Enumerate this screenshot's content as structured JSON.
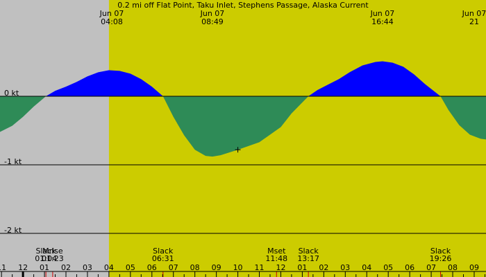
{
  "chart_data": {
    "type": "area",
    "title": "0.2 mi off Flat Point, Taku Inlet, Stephens Passage, Alaska Current",
    "x_unit": "hours after midnight Jun 07 (axis spans previous evening to next morning)",
    "xlim": [
      -1.07,
      21.55
    ],
    "ylim": [
      -2.08,
      1.0
    ],
    "y_ticks": [
      {
        "value": 0,
        "label": "0 kt"
      },
      {
        "value": -1,
        "label": "-1 kt"
      },
      {
        "value": -2,
        "label": "-2 kt"
      }
    ],
    "night_until_hour": 4.0,
    "top_labels": [
      {
        "hour": 4.133,
        "date": "Jun 07",
        "time": "04:08"
      },
      {
        "hour": 8.817,
        "date": "Jun 07",
        "time": "08:49"
      },
      {
        "hour": 16.733,
        "date": "Jun 07",
        "time": "16:44"
      },
      {
        "hour": 21.0,
        "date": "Jun 07",
        "time": "21"
      }
    ],
    "event_labels": [
      {
        "hour": 1.067,
        "name": "Slack",
        "time": "01:04"
      },
      {
        "hour": 1.383,
        "name": "Mrise",
        "time": "01:23"
      },
      {
        "hour": 6.517,
        "name": "Slack",
        "time": "06:31"
      },
      {
        "hour": 11.8,
        "name": "Mset",
        "time": "11:48"
      },
      {
        "hour": 13.283,
        "name": "Slack",
        "time": "13:17"
      },
      {
        "hour": 19.433,
        "name": "Slack",
        "time": "19:26"
      }
    ],
    "hour_ticks": [
      "11",
      "12",
      "01",
      "02",
      "03",
      "04",
      "05",
      "06",
      "07",
      "08",
      "09",
      "10",
      "11",
      "12",
      "01",
      "02",
      "03",
      "04",
      "05",
      "06",
      "07",
      "08",
      "09"
    ],
    "marker": {
      "hour": 10.0,
      "value": -0.78
    },
    "series": [
      {
        "x": [
          -1.07,
          -0.5,
          0,
          0.5,
          1.067,
          1.5,
          2,
          2.5,
          3,
          3.5,
          4,
          4.5,
          5,
          5.5,
          6,
          6.517,
          7,
          7.5,
          8,
          8.5,
          8.817,
          9.2,
          10,
          11,
          12,
          12.5,
          13.283,
          13.7,
          14.2,
          14.7,
          15.2,
          15.8,
          16.4,
          16.733,
          17.2,
          17.7,
          18.2,
          18.7,
          19.433,
          19.8,
          20.3,
          20.8,
          21.3,
          21.55
        ],
        "y": [
          -0.52,
          -0.43,
          -0.3,
          -0.15,
          0,
          0.08,
          0.14,
          0.21,
          0.29,
          0.35,
          0.38,
          0.37,
          0.33,
          0.25,
          0.14,
          0,
          -0.3,
          -0.57,
          -0.78,
          -0.87,
          -0.88,
          -0.86,
          -0.78,
          -0.67,
          -0.45,
          -0.25,
          0,
          0.09,
          0.17,
          0.25,
          0.35,
          0.45,
          0.5,
          0.51,
          0.49,
          0.43,
          0.32,
          0.18,
          0,
          -0.2,
          -0.42,
          -0.56,
          -0.62,
          -0.63
        ]
      }
    ]
  }
}
